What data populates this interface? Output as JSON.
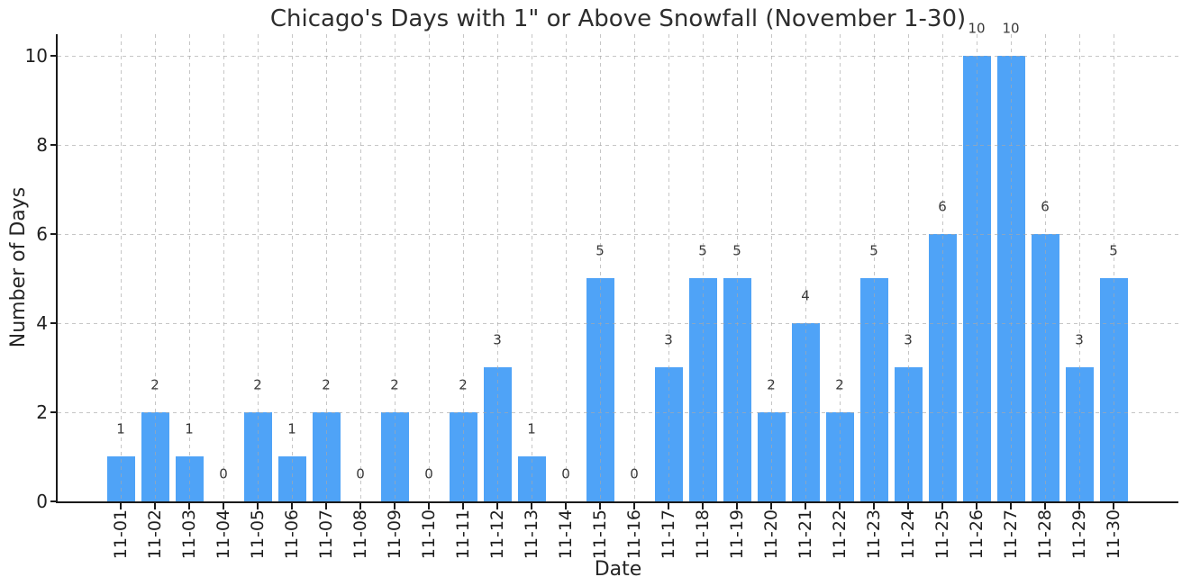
{
  "chart_data": {
    "type": "bar",
    "title": "Chicago's Days with 1\" or Above Snowfall (November 1-30)",
    "xlabel": "Date",
    "ylabel": "Number of Days",
    "categories": [
      "11-01",
      "11-02",
      "11-03",
      "11-04",
      "11-05",
      "11-06",
      "11-07",
      "11-08",
      "11-09",
      "11-10",
      "11-11",
      "11-12",
      "11-13",
      "11-14",
      "11-15",
      "11-16",
      "11-17",
      "11-18",
      "11-19",
      "11-20",
      "11-21",
      "11-22",
      "11-23",
      "11-24",
      "11-25",
      "11-26",
      "11-27",
      "11-28",
      "11-29",
      "11-30"
    ],
    "values": [
      1,
      2,
      1,
      0,
      2,
      1,
      2,
      0,
      2,
      0,
      2,
      3,
      1,
      0,
      5,
      0,
      3,
      5,
      5,
      2,
      4,
      2,
      5,
      3,
      6,
      10,
      10,
      6,
      3,
      5
    ],
    "value_labels_shown": true,
    "yticks": [
      0,
      2,
      4,
      6,
      8,
      10
    ],
    "ylim": [
      0,
      10.5
    ],
    "grid": "dashed, vertical line at every bar and horizontal line at every y tick, drawn over bars",
    "legend": "none",
    "bar_color": "#4FA3F7",
    "grid_color": "#A8A8A8",
    "axis_color": "#1A1A1A",
    "text_color": "#262626"
  }
}
